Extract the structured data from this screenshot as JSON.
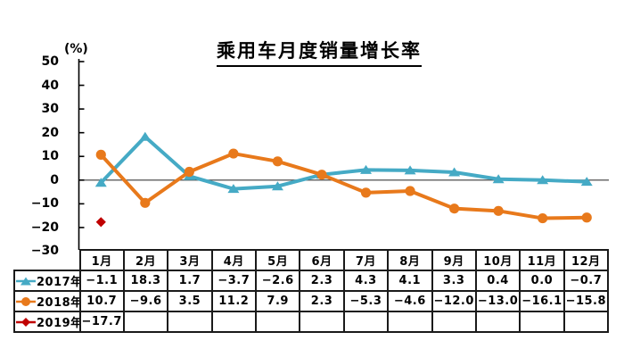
{
  "chart_data": {
    "type": "line",
    "title": "乘用车月度销量增长率",
    "unit_label": "(%)",
    "categories": [
      "1月",
      "2月",
      "3月",
      "4月",
      "5月",
      "6月",
      "7月",
      "8月",
      "9月",
      "10月",
      "11月",
      "12月"
    ],
    "series": [
      {
        "name": "2017年",
        "color": "#45AAC5",
        "marker": "triangle",
        "values": [
          -1.1,
          18.3,
          1.7,
          -3.7,
          -2.6,
          2.3,
          4.3,
          4.1,
          3.3,
          0.4,
          0.0,
          -0.7
        ]
      },
      {
        "name": "2018年",
        "color": "#E8791B",
        "marker": "circle",
        "values": [
          10.7,
          -9.6,
          3.5,
          11.2,
          7.9,
          2.3,
          -5.3,
          -4.6,
          -12.0,
          -13.0,
          -16.1,
          -15.8
        ]
      },
      {
        "name": "2019年",
        "color": "#C00000",
        "marker": "diamond",
        "values": [
          -17.7,
          null,
          null,
          null,
          null,
          null,
          null,
          null,
          null,
          null,
          null,
          null
        ]
      }
    ],
    "ylim": [
      -30,
      50
    ],
    "yticks": [
      50,
      40,
      30,
      20,
      10,
      0,
      -10,
      -20,
      -30
    ],
    "grid": false,
    "legend_position": "table-left",
    "axis_color": "#000000",
    "zero_line_color": "#3a3a3a"
  }
}
